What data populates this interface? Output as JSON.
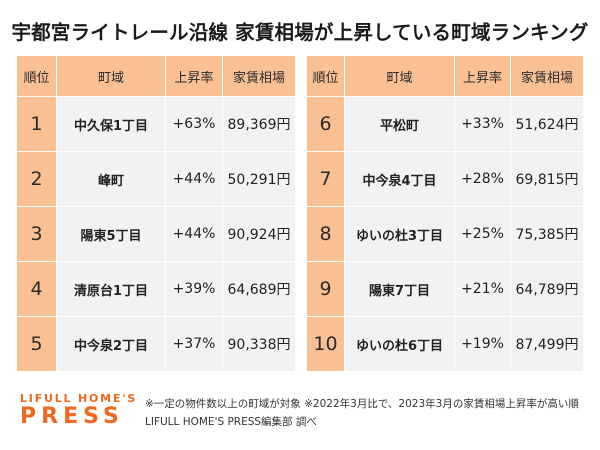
{
  "title": "宇都宮ライトレール沿線 家賃相場が上昇している町域ランキング",
  "columns": [
    "順位",
    "町域",
    "上昇率",
    "家賃相場"
  ],
  "left_rows": [
    {
      "rank": "1",
      "town": "中久保1丁目",
      "rate": "+63%",
      "rent": "89,369円"
    },
    {
      "rank": "2",
      "town": "峰町",
      "rate": "+44%",
      "rent": "50,291円"
    },
    {
      "rank": "3",
      "town": "陽東5丁目",
      "rate": "+44%",
      "rent": "90,924円"
    },
    {
      "rank": "4",
      "town": "清原台1丁目",
      "rate": "+39%",
      "rent": "64,689円"
    },
    {
      "rank": "5",
      "town": "中今泉2丁目",
      "rate": "+37%",
      "rent": "90,338円"
    }
  ],
  "right_rows": [
    {
      "rank": "6",
      "town": "平松町",
      "rate": "+33%",
      "rent": "51,624円"
    },
    {
      "rank": "7",
      "town": "中今泉4丁目",
      "rate": "+28%",
      "rent": "69,815円"
    },
    {
      "rank": "8",
      "town": "ゆいの杜3丁目",
      "rate": "+25%",
      "rent": "75,385円"
    },
    {
      "rank": "9",
      "town": "陽東7丁目",
      "rate": "+21%",
      "rent": "64,789円"
    },
    {
      "rank": "10",
      "town": "ゆいの杜6丁目",
      "rate": "+19%",
      "rent": "87,499円"
    }
  ],
  "footer": {
    "logo_line1": "LIFULL HOME'S",
    "logo_line2": "PRESS",
    "note1": "※一定の物件数以上の町域が対象 ※2022年3月比で、2023年3月の家賃相場上昇率が高い順",
    "note2": "LIFULL HOME'S PRESS編集部 調べ"
  },
  "colors": {
    "header_bg": "#f9c094",
    "cell_bg": "#f2f2f2",
    "brand_orange": "#ee6820"
  }
}
